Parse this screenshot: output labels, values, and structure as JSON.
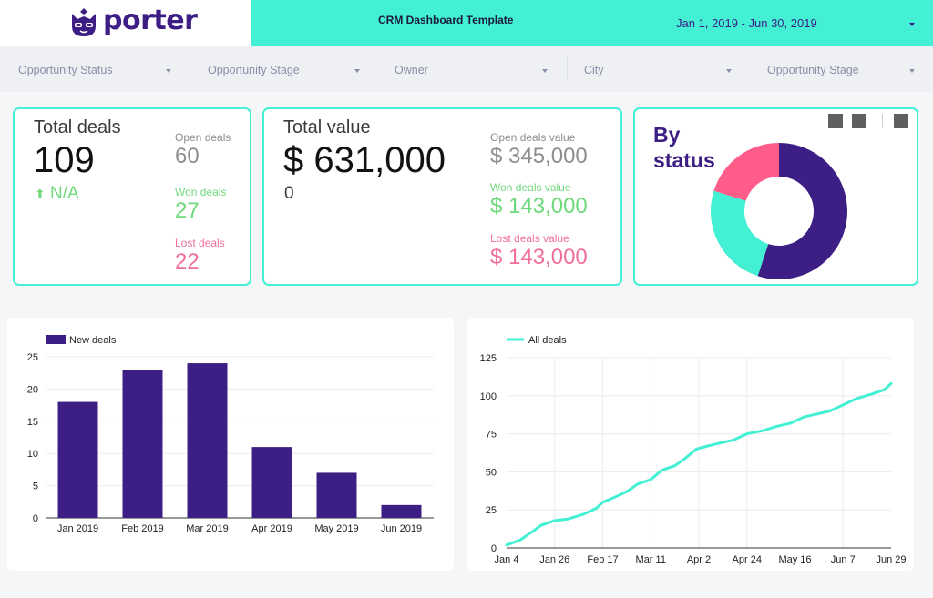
{
  "header": {
    "logo_text": "porter",
    "title": "CRM Dashboard Template",
    "date_range": "Jan 1, 2019 - Jun 30, 2019"
  },
  "filters": [
    {
      "label": "Opportunity Status"
    },
    {
      "label": "Opportunity Stage"
    },
    {
      "label": "Owner"
    },
    {
      "label": "City"
    },
    {
      "label": "Opportunity Stage"
    }
  ],
  "kpi_deals": {
    "title": "Total deals",
    "value": "109",
    "change": "N/A",
    "open_label": "Open deals",
    "open_value": "60",
    "won_label": "Won deals",
    "won_value": "27",
    "lost_label": "Lost deals",
    "lost_value": "22"
  },
  "kpi_value": {
    "title": "Total value",
    "value": "$ 631,000",
    "change": "0",
    "open_label": "Open deals value",
    "open_value": "$ 345,000",
    "won_label": "Won deals value",
    "won_value": "$ 143,000",
    "lost_label": "Lost deals value",
    "lost_value": "$ 143,000"
  },
  "colors": {
    "brand": "#3d1e84",
    "teal": "#43f0d4",
    "green": "#6fd97c",
    "pink": "#f0709a",
    "donut_pink": "#ff5c8a"
  },
  "chart_data": [
    {
      "type": "pie",
      "title": "By status",
      "variant": "donut",
      "slices": [
        {
          "name": "Open",
          "value": 60,
          "color": "#3d1e84"
        },
        {
          "name": "Won",
          "value": 27,
          "color": "#43f0d4"
        },
        {
          "name": "Lost",
          "value": 22,
          "color": "#ff5c8a"
        }
      ]
    },
    {
      "type": "bar",
      "categories": [
        "Jan 2019",
        "Feb 2019",
        "Mar 2019",
        "Apr 2019",
        "May 2019",
        "Jun 2019"
      ],
      "series": [
        {
          "name": "New deals",
          "values": [
            18,
            23,
            24,
            11,
            7,
            2
          ],
          "color": "#3d1e84"
        }
      ],
      "ylim": [
        0,
        25
      ],
      "yticks": [
        0,
        5,
        10,
        15,
        20,
        25
      ],
      "grid": true,
      "legend": "top-left"
    },
    {
      "type": "line",
      "series": [
        {
          "name": "All deals",
          "color": "#43f0d4",
          "x": [
            "2019-01-04",
            "2019-01-10",
            "2019-01-15",
            "2019-01-20",
            "2019-01-26",
            "2019-02-01",
            "2019-02-08",
            "2019-02-14",
            "2019-02-17",
            "2019-02-22",
            "2019-02-28",
            "2019-03-05",
            "2019-03-11",
            "2019-03-16",
            "2019-03-22",
            "2019-03-26",
            "2019-04-01",
            "2019-04-06",
            "2019-04-12",
            "2019-04-18",
            "2019-04-24",
            "2019-05-01",
            "2019-05-08",
            "2019-05-14",
            "2019-05-20",
            "2019-05-26",
            "2019-06-01",
            "2019-06-07",
            "2019-06-13",
            "2019-06-20",
            "2019-06-26",
            "2019-06-29"
          ],
          "values": [
            2,
            5,
            10,
            15,
            18,
            19,
            22,
            26,
            30,
            33,
            37,
            42,
            45,
            51,
            54,
            58,
            65,
            67,
            69,
            71,
            75,
            77,
            80,
            82,
            86,
            88,
            90,
            94,
            98,
            101,
            104,
            108
          ]
        }
      ],
      "xticks": [
        "Jan 4",
        "Jan 26",
        "Feb 17",
        "Mar 11",
        "Apr 2",
        "Apr 24",
        "May 16",
        "Jun 7",
        "Jun 29"
      ],
      "ylim": [
        0,
        125
      ],
      "yticks": [
        0,
        25,
        50,
        75,
        100,
        125
      ],
      "grid": true,
      "legend": "top-left"
    }
  ]
}
